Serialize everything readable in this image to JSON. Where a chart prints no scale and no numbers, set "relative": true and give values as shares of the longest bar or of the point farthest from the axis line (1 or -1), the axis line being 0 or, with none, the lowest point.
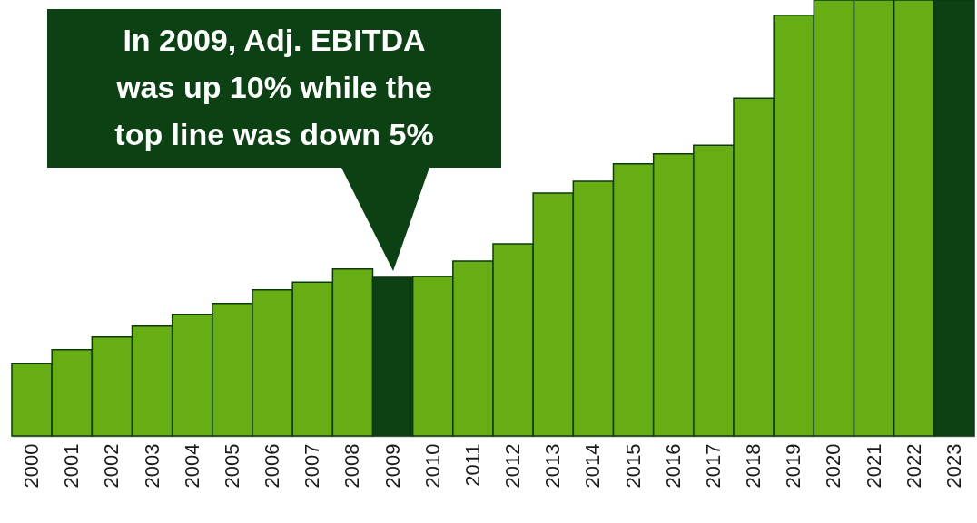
{
  "chart_data": {
    "type": "bar",
    "relative": true,
    "categories": [
      "2000",
      "2001",
      "2002",
      "2003",
      "2004",
      "2005",
      "2006",
      "2007",
      "2008",
      "2009",
      "2010",
      "2011",
      "2012",
      "2013",
      "2014",
      "2015",
      "2016",
      "2017",
      "2018",
      "2019",
      "2020",
      "2021",
      "2022",
      "2023"
    ],
    "values": [
      0.166,
      0.198,
      0.227,
      0.252,
      0.279,
      0.304,
      0.335,
      0.353,
      0.383,
      0.364,
      0.366,
      0.401,
      0.441,
      0.557,
      0.584,
      0.624,
      0.647,
      0.667,
      0.775,
      0.965,
      1,
      1,
      1,
      1
    ],
    "colors": [
      "#66ae14",
      "#66ae14",
      "#66ae14",
      "#66ae14",
      "#66ae14",
      "#66ae14",
      "#66ae14",
      "#66ae14",
      "#66ae14",
      "#0c4114",
      "#66ae14",
      "#66ae14",
      "#66ae14",
      "#66ae14",
      "#66ae14",
      "#66ae14",
      "#66ae14",
      "#66ae14",
      "#66ae14",
      "#66ae14",
      "#66ae14",
      "#66ae14",
      "#66ae14",
      "#0c4114"
    ],
    "annotations": [
      "In 2009, Adj. EBITDA was up 10% while the top line was down 5%"
    ]
  }
}
